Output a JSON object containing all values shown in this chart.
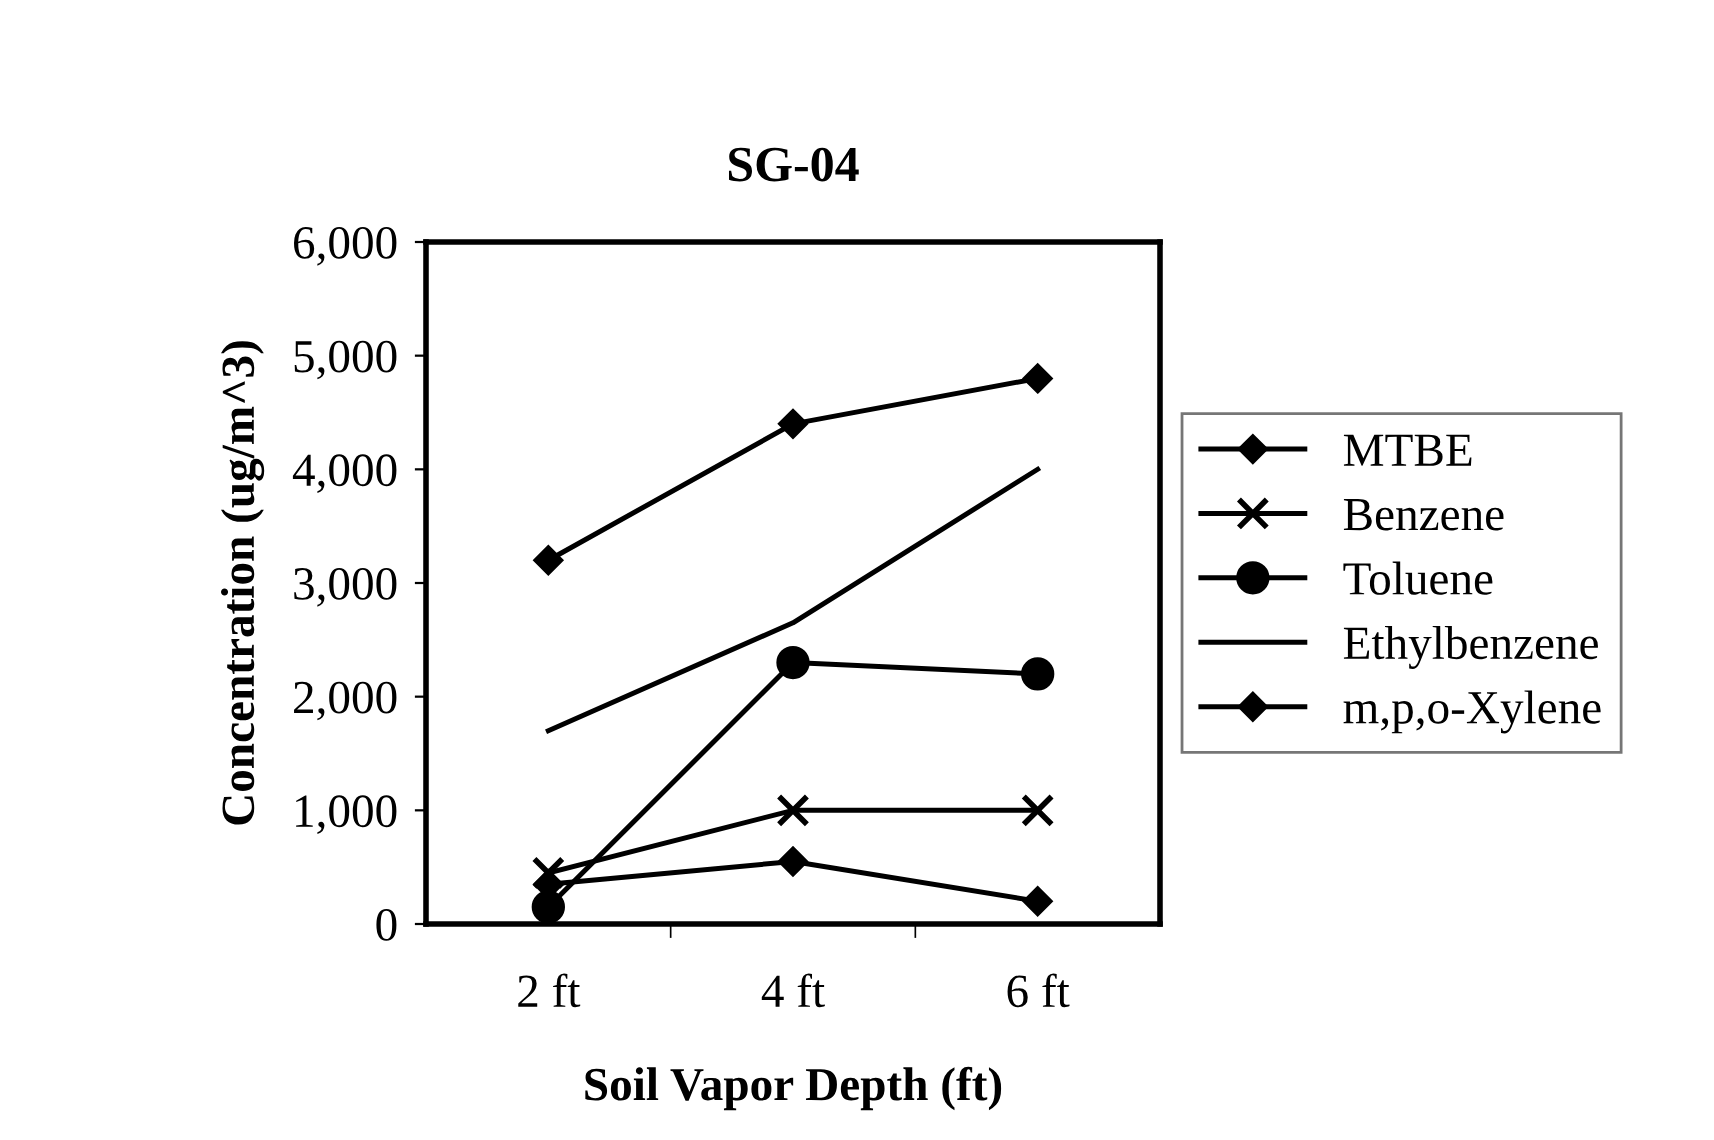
{
  "chart_data": {
    "type": "line",
    "title": "SG-04",
    "xlabel": "Soil Vapor Depth (ft)",
    "ylabel": "Concentration (ug/m^3)",
    "categories": [
      "2 ft",
      "4 ft",
      "6 ft"
    ],
    "series": [
      {
        "name": "MTBE",
        "color": "#000000",
        "marker": "diamond",
        "values": [
          350,
          550,
          200
        ]
      },
      {
        "name": "Benzene",
        "color": "#000000",
        "marker": "cross",
        "values": [
          450,
          1000,
          1000
        ]
      },
      {
        "name": "Toluene",
        "color": "#000000",
        "marker": "circle",
        "values": [
          150,
          2300,
          2200
        ]
      },
      {
        "name": "Ethylbenzene",
        "color": "#000000",
        "marker": "none",
        "values": [
          1700,
          2650,
          4000
        ]
      },
      {
        "name": "m,p,o-Xylene",
        "color": "#000000",
        "marker": "diamond",
        "values": [
          3200,
          4400,
          4800
        ]
      }
    ],
    "ylim": [
      0,
      6000
    ],
    "yticks": [
      {
        "value": 0,
        "label": "0"
      },
      {
        "value": 1000,
        "label": "1,000"
      },
      {
        "value": 2000,
        "label": "2,000"
      },
      {
        "value": 3000,
        "label": "3,000"
      },
      {
        "value": 4000,
        "label": "4,000"
      },
      {
        "value": 5000,
        "label": "5,000"
      },
      {
        "value": 6000,
        "label": "6,000"
      }
    ],
    "grid": false,
    "legend": "right"
  }
}
